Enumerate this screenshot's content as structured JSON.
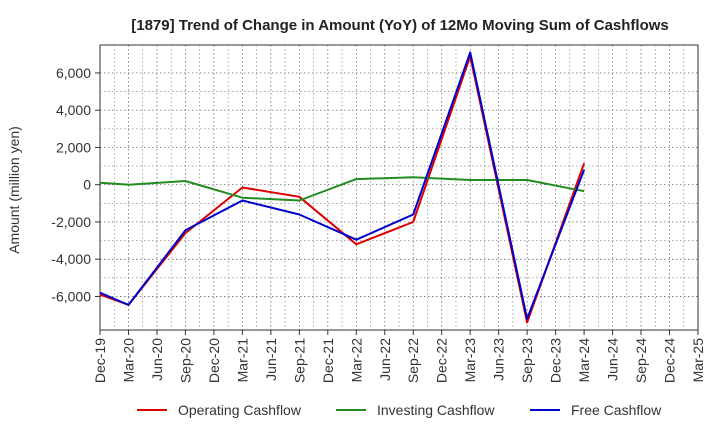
{
  "chart_data": {
    "type": "line",
    "title": "[1879]  Trend of Change in Amount (YoY) of 12Mo Moving Sum of Cashflows",
    "xlabel": "",
    "ylabel": "Amount (million yen)",
    "ylim": [
      -7800,
      7500
    ],
    "yticks": [
      -6000,
      -4000,
      -2000,
      0,
      2000,
      4000,
      6000
    ],
    "ytick_labels": [
      "-6,000",
      "-4,000",
      "-2,000",
      "0",
      "2,000",
      "4,000",
      "6,000"
    ],
    "x_labels": [
      "Dec-19",
      "Mar-20",
      "Jun-20",
      "Sep-20",
      "Dec-20",
      "Mar-21",
      "Jun-21",
      "Sep-21",
      "Dec-21",
      "Mar-22",
      "Jun-22",
      "Sep-22",
      "Dec-22",
      "Mar-23",
      "Jun-23",
      "Sep-23",
      "Dec-23",
      "Mar-24",
      "Jun-24",
      "Sep-24",
      "Dec-24",
      "Mar-25"
    ],
    "grid": true,
    "legend_position": "bottom",
    "series": [
      {
        "name": "Operating Cashflow",
        "color": "#dd0000",
        "values": [
          -5900,
          -6450,
          null,
          -2600,
          null,
          -150,
          null,
          -650,
          null,
          -3200,
          null,
          -2000,
          null,
          6900,
          null,
          -7400,
          null,
          1150,
          null,
          null,
          null,
          null
        ]
      },
      {
        "name": "Investing Cashflow",
        "color": "#228b22",
        "values": [
          100,
          0,
          null,
          200,
          null,
          -700,
          null,
          -850,
          null,
          300,
          null,
          400,
          null,
          250,
          null,
          250,
          null,
          -350,
          null,
          null,
          null,
          null
        ]
      },
      {
        "name": "Free Cashflow",
        "color": "#0000cc",
        "values": [
          -5800,
          -6450,
          null,
          -2450,
          null,
          -850,
          null,
          -1600,
          null,
          -2950,
          null,
          -1600,
          null,
          7100,
          null,
          -7200,
          null,
          800,
          null,
          null,
          null,
          null
        ]
      }
    ]
  }
}
